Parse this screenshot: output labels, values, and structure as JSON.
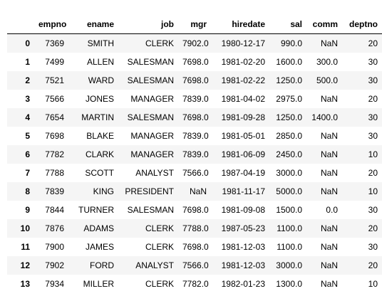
{
  "table": {
    "columns": [
      "",
      "empno",
      "ename",
      "job",
      "mgr",
      "hiredate",
      "sal",
      "comm",
      "deptno"
    ],
    "rows": [
      [
        "0",
        "7369",
        "SMITH",
        "CLERK",
        "7902.0",
        "1980-12-17",
        "990.0",
        "NaN",
        "20"
      ],
      [
        "1",
        "7499",
        "ALLEN",
        "SALESMAN",
        "7698.0",
        "1981-02-20",
        "1600.0",
        "300.0",
        "30"
      ],
      [
        "2",
        "7521",
        "WARD",
        "SALESMAN",
        "7698.0",
        "1981-02-22",
        "1250.0",
        "500.0",
        "30"
      ],
      [
        "3",
        "7566",
        "JONES",
        "MANAGER",
        "7839.0",
        "1981-04-02",
        "2975.0",
        "NaN",
        "20"
      ],
      [
        "4",
        "7654",
        "MARTIN",
        "SALESMAN",
        "7698.0",
        "1981-09-28",
        "1250.0",
        "1400.0",
        "30"
      ],
      [
        "5",
        "7698",
        "BLAKE",
        "MANAGER",
        "7839.0",
        "1981-05-01",
        "2850.0",
        "NaN",
        "30"
      ],
      [
        "6",
        "7782",
        "CLARK",
        "MANAGER",
        "7839.0",
        "1981-06-09",
        "2450.0",
        "NaN",
        "10"
      ],
      [
        "7",
        "7788",
        "SCOTT",
        "ANALYST",
        "7566.0",
        "1987-04-19",
        "3000.0",
        "NaN",
        "20"
      ],
      [
        "8",
        "7839",
        "KING",
        "PRESIDENT",
        "NaN",
        "1981-11-17",
        "5000.0",
        "NaN",
        "10"
      ],
      [
        "9",
        "7844",
        "TURNER",
        "SALESMAN",
        "7698.0",
        "1981-09-08",
        "1500.0",
        "0.0",
        "30"
      ],
      [
        "10",
        "7876",
        "ADAMS",
        "CLERK",
        "7788.0",
        "1987-05-23",
        "1100.0",
        "NaN",
        "20"
      ],
      [
        "11",
        "7900",
        "JAMES",
        "CLERK",
        "7698.0",
        "1981-12-03",
        "1100.0",
        "NaN",
        "30"
      ],
      [
        "12",
        "7902",
        "FORD",
        "ANALYST",
        "7566.0",
        "1981-12-03",
        "3000.0",
        "NaN",
        "20"
      ],
      [
        "13",
        "7934",
        "MILLER",
        "CLERK",
        "7782.0",
        "1982-01-23",
        "1300.0",
        "NaN",
        "10"
      ]
    ]
  },
  "colors": {
    "stripe": "#f5f5f5",
    "background": "#ffffff",
    "header_rule": "#000000",
    "text": "#000000"
  }
}
